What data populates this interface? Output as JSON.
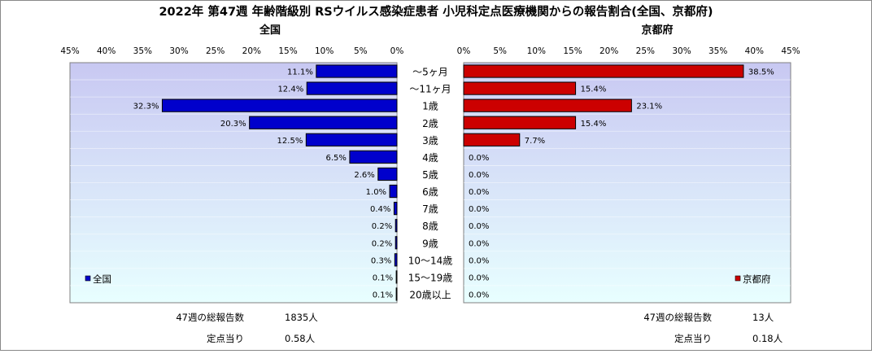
{
  "title": "2022年 第47週 年齢階級別 RSウイルス感染症患者 小児科定点医療機関からの報告割合(全国、京都府)",
  "colors": {
    "national_bar": "#0000cc",
    "kyoto_bar": "#cc0000",
    "plot_bg_top": "#c8c8f2",
    "plot_bg_bottom": "#e8ffff"
  },
  "chart_data": [
    {
      "type": "bar",
      "orientation": "horizontal",
      "direction": "right-to-left",
      "title": "全国",
      "categories": [
        "～5ヶ月",
        "～11ヶ月",
        "1歳",
        "2歳",
        "3歳",
        "4歳",
        "5歳",
        "6歳",
        "7歳",
        "8歳",
        "9歳",
        "10～14歳",
        "15～19歳",
        "20歳以上"
      ],
      "series": [
        {
          "name": "全国",
          "values": [
            11.1,
            12.4,
            32.3,
            20.3,
            12.5,
            6.5,
            2.6,
            1.0,
            0.4,
            0.2,
            0.2,
            0.3,
            0.1,
            0.1
          ]
        }
      ],
      "data_labels": [
        "11.1%",
        "12.4%",
        "32.3%",
        "20.3%",
        "12.5%",
        "6.5%",
        "2.6%",
        "1.0%",
        "0.4%",
        "0.2%",
        "0.2%",
        "0.3%",
        "0.1%",
        "0.1%"
      ],
      "xlim": [
        0,
        45
      ],
      "x_ticks": [
        "0%",
        "5%",
        "10%",
        "15%",
        "20%",
        "25%",
        "30%",
        "35%",
        "40%",
        "45%"
      ],
      "legend": "bottom-left",
      "footer": [
        {
          "label": "47週の総報告数",
          "value": "1835人"
        },
        {
          "label": "定点当り",
          "value": "0.58人"
        }
      ]
    },
    {
      "type": "bar",
      "orientation": "horizontal",
      "direction": "left-to-right",
      "title": "京都府",
      "categories": [
        "～5ヶ月",
        "～11ヶ月",
        "1歳",
        "2歳",
        "3歳",
        "4歳",
        "5歳",
        "6歳",
        "7歳",
        "8歳",
        "9歳",
        "10～14歳",
        "15～19歳",
        "20歳以上"
      ],
      "series": [
        {
          "name": "京都府",
          "values": [
            38.5,
            15.4,
            23.1,
            15.4,
            7.7,
            0,
            0,
            0,
            0,
            0,
            0,
            0,
            0,
            0
          ]
        }
      ],
      "data_labels": [
        "38.5%",
        "15.4%",
        "23.1%",
        "15.4%",
        "7.7%",
        "0.0%",
        "0.0%",
        "0.0%",
        "0.0%",
        "0.0%",
        "0.0%",
        "0.0%",
        "0.0%",
        "0.0%"
      ],
      "xlim": [
        0,
        45
      ],
      "x_ticks": [
        "0%",
        "5%",
        "10%",
        "15%",
        "20%",
        "25%",
        "30%",
        "35%",
        "40%",
        "45%"
      ],
      "legend": "bottom-right",
      "footer": [
        {
          "label": "47週の総報告数",
          "value": "13人"
        },
        {
          "label": "定点当り",
          "value": "0.18人"
        }
      ]
    }
  ]
}
